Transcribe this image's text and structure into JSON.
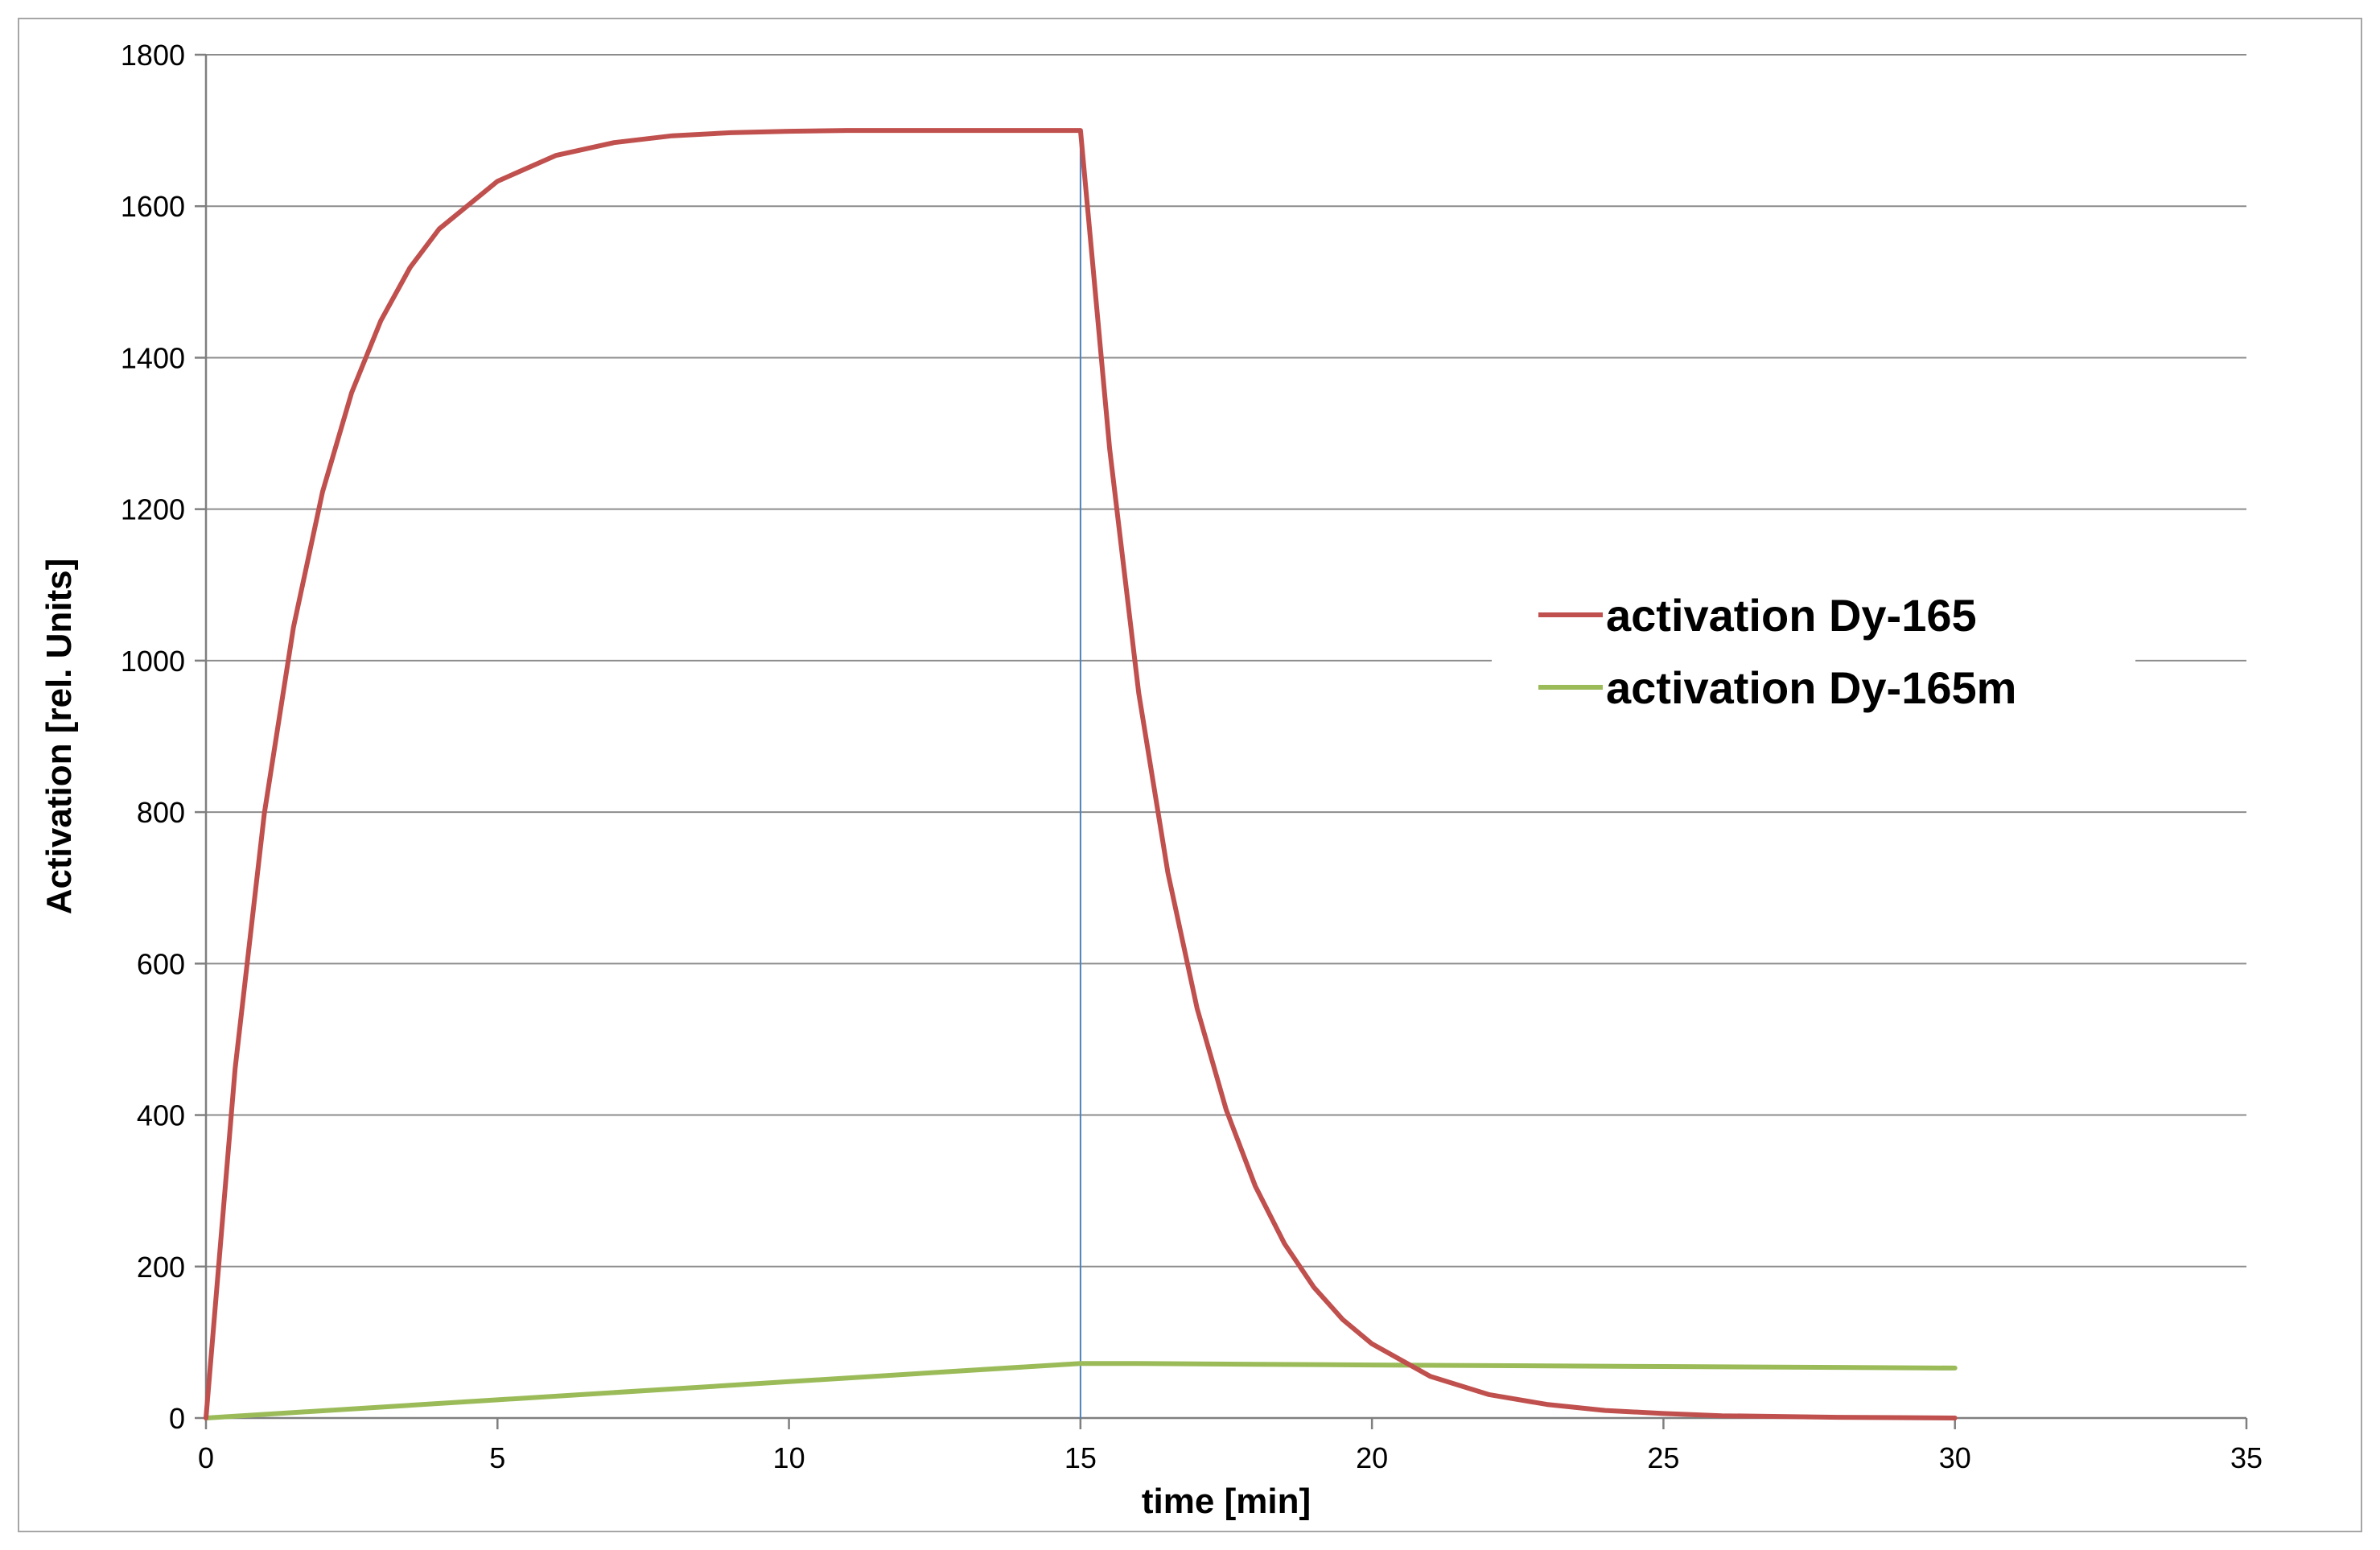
{
  "chart_data": {
    "type": "line",
    "title": "",
    "xlabel": "time [min]",
    "ylabel": "Activation [rel. Units]",
    "xlim": [
      0,
      35
    ],
    "ylim": [
      0,
      1800
    ],
    "xticks": [
      0,
      5,
      10,
      15,
      20,
      25,
      30,
      35
    ],
    "yticks": [
      0,
      200,
      400,
      600,
      800,
      1000,
      1200,
      1400,
      1600,
      1800
    ],
    "grid": "horizontal",
    "legend_position": "right",
    "series": [
      {
        "name": "activation Dy-165",
        "color": "#c0504d",
        "x": [
          0,
          0.5,
          1,
          1.5,
          2,
          2.5,
          3,
          3.5,
          4,
          5,
          6,
          7,
          8,
          9,
          10,
          11,
          12,
          13,
          14,
          15,
          15.5,
          16,
          16.5,
          17,
          17.5,
          18,
          18.5,
          19,
          19.5,
          20,
          21,
          22,
          23,
          24,
          25,
          26,
          27,
          28,
          29,
          30
        ],
        "y": [
          0,
          461,
          798,
          1044,
          1223,
          1354,
          1449,
          1519,
          1570,
          1633,
          1667,
          1684,
          1693,
          1697,
          1699,
          1700,
          1700,
          1700,
          1700,
          1700,
          1280,
          957,
          720,
          541,
          407,
          306,
          230,
          173,
          130,
          98,
          55,
          31,
          18,
          10,
          6,
          3,
          2,
          1,
          0.5,
          0
        ]
      },
      {
        "name": "activation Dy-165m",
        "color": "#9bbb59",
        "x": [
          0,
          5,
          10,
          15,
          16,
          17,
          18,
          20,
          25,
          30
        ],
        "y": [
          0,
          24,
          48,
          72,
          72,
          71.5,
          71,
          70,
          68,
          66
        ]
      },
      {
        "name": "",
        "color": "#4f81bd",
        "x": [
          15,
          15
        ],
        "y": [
          1700,
          0
        ]
      }
    ]
  }
}
